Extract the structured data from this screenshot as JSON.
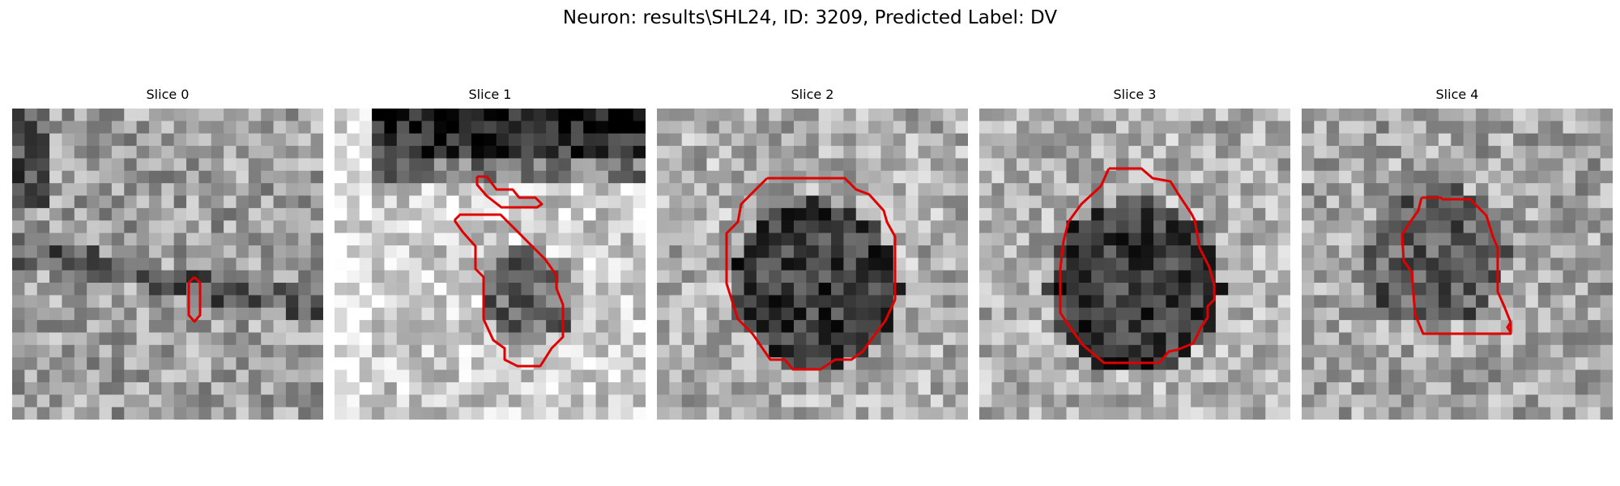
{
  "figure": {
    "title": "Neuron: results\\SHL24, ID: 3209, Predicted Label: DV"
  },
  "colors": {
    "contour": "#e00000",
    "background": "#ffffff"
  },
  "panels": [
    {
      "title": "Slice 0"
    },
    {
      "title": "Slice 1"
    },
    {
      "title": "Slice 2"
    },
    {
      "title": "Slice 3"
    },
    {
      "title": "Slice 4"
    }
  ]
}
